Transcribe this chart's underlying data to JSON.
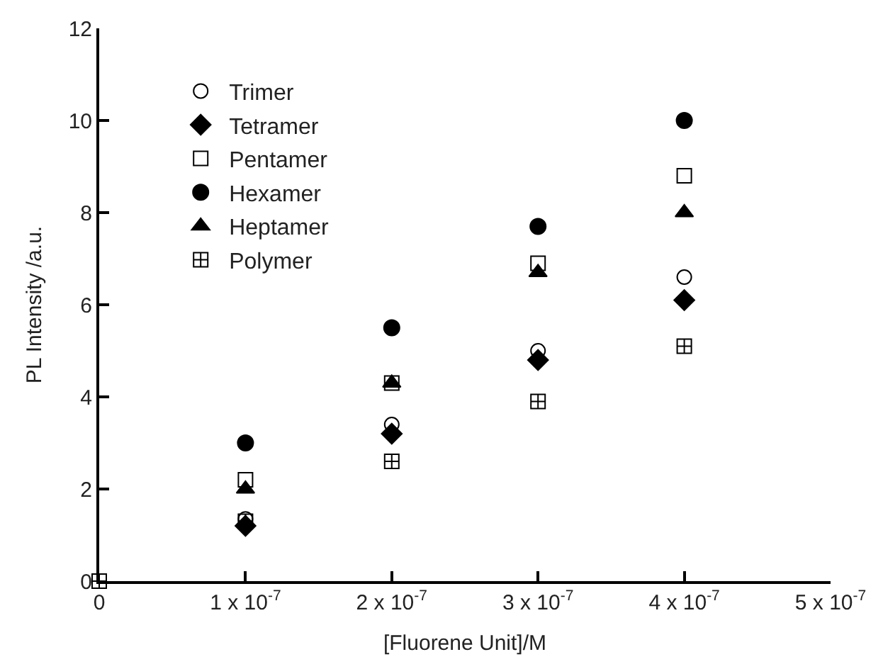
{
  "chart_data": {
    "type": "scatter",
    "xlabel": "[Fluorene Unit]/M",
    "ylabel": "PL Intensity /a.u.",
    "x": [
      0,
      1e-07,
      2e-07,
      3e-07,
      4e-07
    ],
    "xlim": [
      0,
      5e-07
    ],
    "xticks": [
      0,
      {
        "value": 1e-07,
        "label": "1 x 10$^{-7}$"
      },
      {
        "value": 2e-07,
        "label": "2 x 10$^{-7}$"
      },
      {
        "value": 3e-07,
        "label": "3 x 10$^{-7}$"
      },
      {
        "value": 4e-07,
        "label": "4 x 10$^{-7}$"
      },
      {
        "value": 5e-07,
        "label": "5 x 10$^{-7}$"
      }
    ],
    "ylim": [
      0,
      12
    ],
    "yticks": [
      0,
      2,
      4,
      6,
      8,
      10,
      12
    ],
    "legend": "top left",
    "series": [
      {
        "name": "Trimer",
        "color": "#000000",
        "marker": "circle-open",
        "values": [
          null,
          1.35,
          3.4,
          5.0,
          6.6
        ]
      },
      {
        "name": "Tetramer",
        "color": "#000000",
        "marker": "diamond",
        "values": [
          null,
          1.2,
          3.2,
          4.8,
          6.1
        ]
      },
      {
        "name": "Pentamer",
        "color": "#000000",
        "marker": "square-open",
        "values": [
          null,
          2.2,
          4.3,
          6.9,
          8.8
        ]
      },
      {
        "name": "Hexamer",
        "color": "#000000",
        "marker": "circle",
        "values": [
          null,
          3.0,
          5.5,
          7.7,
          10.0
        ]
      },
      {
        "name": "Heptamer",
        "color": "#000000",
        "marker": "triangle-up",
        "values": [
          null,
          2.0,
          4.3,
          6.7,
          8.0
        ]
      },
      {
        "name": "Polymer",
        "color": "#000000",
        "marker": "cross",
        "values": [
          0,
          1.3,
          2.6,
          3.9,
          5.1
        ]
      }
    ]
  }
}
